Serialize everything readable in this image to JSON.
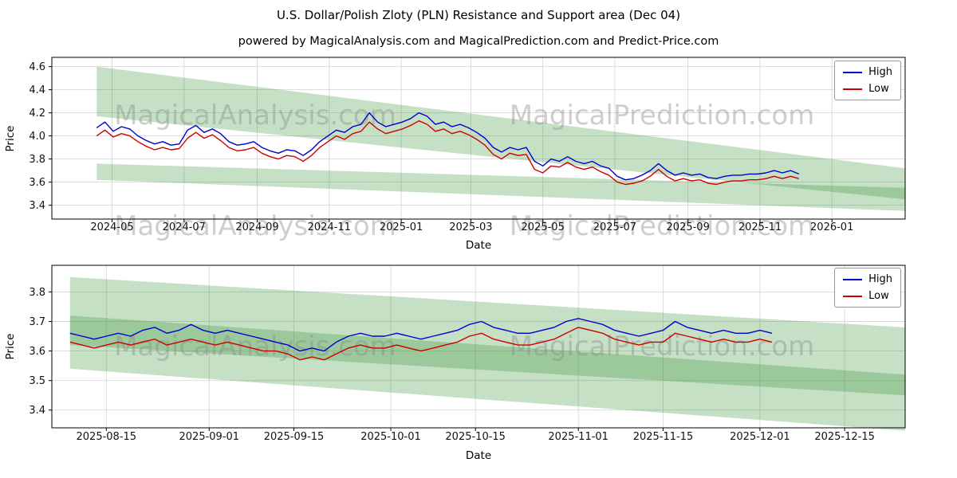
{
  "title": "U.S. Dollar/Polish Zloty (PLN) Resistance and Support area (Dec 04)",
  "subtitle": "powered by MagicalAnalysis.com and MagicalPrediction.com and Predict-Price.com",
  "watermarks": {
    "left": "MagicalAnalysis.com",
    "right": "MagicalPrediction.com"
  },
  "colors": {
    "high": "#0000cc",
    "low": "#cc0000",
    "band": "#2e8b2e",
    "grid": "#d8d8d8"
  },
  "t_unit": "days since 2024-01-01",
  "chart_data": [
    {
      "type": "line",
      "xlabel": "Date",
      "ylabel": "Price",
      "x_domain": [
        70,
        793
      ],
      "ylim": [
        3.28,
        4.68
      ],
      "x_ticks": [
        {
          "t": 121,
          "label": "2024-05"
        },
        {
          "t": 182,
          "label": "2024-07"
        },
        {
          "t": 244,
          "label": "2024-09"
        },
        {
          "t": 305,
          "label": "2024-11"
        },
        {
          "t": 366,
          "label": "2025-01"
        },
        {
          "t": 425,
          "label": "2025-03"
        },
        {
          "t": 486,
          "label": "2025-05"
        },
        {
          "t": 547,
          "label": "2025-07"
        },
        {
          "t": 609,
          "label": "2025-09"
        },
        {
          "t": 670,
          "label": "2025-11"
        },
        {
          "t": 731,
          "label": "2026-01"
        }
      ],
      "y_ticks": [
        {
          "v": 3.4,
          "label": "3.4"
        },
        {
          "v": 3.6,
          "label": "3.6"
        },
        {
          "v": 3.8,
          "label": "3.8"
        },
        {
          "v": 4.0,
          "label": "4.0"
        },
        {
          "v": 4.2,
          "label": "4.2"
        },
        {
          "v": 4.4,
          "label": "4.4"
        },
        {
          "v": 4.6,
          "label": "4.6"
        }
      ],
      "series": [
        {
          "name": "High",
          "color": "#0000cc",
          "t_start": 108,
          "t_step": 7,
          "values": [
            4.07,
            4.12,
            4.04,
            4.08,
            4.06,
            4.0,
            3.96,
            3.93,
            3.95,
            3.92,
            3.93,
            4.05,
            4.09,
            4.03,
            4.06,
            4.02,
            3.95,
            3.92,
            3.93,
            3.95,
            3.9,
            3.87,
            3.85,
            3.88,
            3.87,
            3.83,
            3.88,
            3.95,
            4.0,
            4.05,
            4.03,
            4.08,
            4.1,
            4.2,
            4.12,
            4.08,
            4.1,
            4.12,
            4.15,
            4.2,
            4.17,
            4.1,
            4.12,
            4.08,
            4.1,
            4.07,
            4.03,
            3.98,
            3.9,
            3.86,
            3.9,
            3.88,
            3.9,
            3.78,
            3.74,
            3.8,
            3.78,
            3.82,
            3.78,
            3.76,
            3.78,
            3.74,
            3.72,
            3.65,
            3.62,
            3.63,
            3.66,
            3.7,
            3.76,
            3.7,
            3.66,
            3.68,
            3.66,
            3.67,
            3.64,
            3.63,
            3.65,
            3.66,
            3.66,
            3.67,
            3.67,
            3.68,
            3.7,
            3.68,
            3.7,
            3.67
          ]
        },
        {
          "name": "Low",
          "color": "#cc0000",
          "t_start": 108,
          "t_step": 7,
          "values": [
            4.0,
            4.05,
            3.99,
            4.02,
            4.0,
            3.95,
            3.91,
            3.88,
            3.9,
            3.88,
            3.89,
            3.98,
            4.03,
            3.98,
            4.01,
            3.96,
            3.9,
            3.87,
            3.88,
            3.9,
            3.85,
            3.82,
            3.8,
            3.83,
            3.82,
            3.78,
            3.83,
            3.9,
            3.95,
            4.0,
            3.97,
            4.02,
            4.04,
            4.12,
            4.06,
            4.02,
            4.04,
            4.06,
            4.09,
            4.13,
            4.1,
            4.04,
            4.06,
            4.02,
            4.04,
            4.01,
            3.97,
            3.92,
            3.84,
            3.8,
            3.85,
            3.83,
            3.84,
            3.71,
            3.68,
            3.74,
            3.73,
            3.77,
            3.73,
            3.71,
            3.73,
            3.69,
            3.66,
            3.6,
            3.58,
            3.59,
            3.61,
            3.65,
            3.71,
            3.65,
            3.61,
            3.63,
            3.61,
            3.62,
            3.59,
            3.58,
            3.6,
            3.61,
            3.61,
            3.62,
            3.62,
            3.63,
            3.65,
            3.63,
            3.65,
            3.63
          ]
        }
      ],
      "bands": [
        {
          "name": "resistance-area",
          "t0": 108,
          "t1": 793,
          "top": [
            4.6,
            3.72
          ],
          "bottom": [
            4.17,
            3.45
          ]
        },
        {
          "name": "support-area",
          "t0": 108,
          "t1": 793,
          "top": [
            3.76,
            3.55
          ],
          "bottom": [
            3.62,
            3.35
          ]
        }
      ],
      "legend": {
        "position": "upper right",
        "items": [
          "High",
          "Low"
        ]
      }
    },
    {
      "type": "line",
      "xlabel": "Date",
      "ylabel": "Price",
      "x_domain": [
        583,
        724
      ],
      "ylim": [
        3.34,
        3.89
      ],
      "x_ticks": [
        {
          "t": 592,
          "label": "2025-08-15"
        },
        {
          "t": 609,
          "label": "2025-09-01"
        },
        {
          "t": 623,
          "label": "2025-09-15"
        },
        {
          "t": 639,
          "label": "2025-10-01"
        },
        {
          "t": 653,
          "label": "2025-10-15"
        },
        {
          "t": 670,
          "label": "2025-11-01"
        },
        {
          "t": 684,
          "label": "2025-11-15"
        },
        {
          "t": 700,
          "label": "2025-12-01"
        },
        {
          "t": 714,
          "label": "2025-12-15"
        }
      ],
      "y_ticks": [
        {
          "v": 3.4,
          "label": "3.4"
        },
        {
          "v": 3.5,
          "label": "3.5"
        },
        {
          "v": 3.6,
          "label": "3.6"
        },
        {
          "v": 3.7,
          "label": "3.7"
        },
        {
          "v": 3.8,
          "label": "3.8"
        }
      ],
      "series": [
        {
          "name": "High",
          "color": "#0000cc",
          "t_start": 586,
          "t_step": 2,
          "values": [
            3.66,
            3.65,
            3.64,
            3.65,
            3.66,
            3.65,
            3.67,
            3.68,
            3.66,
            3.67,
            3.69,
            3.67,
            3.66,
            3.67,
            3.66,
            3.65,
            3.64,
            3.63,
            3.62,
            3.6,
            3.61,
            3.6,
            3.63,
            3.65,
            3.66,
            3.65,
            3.65,
            3.66,
            3.65,
            3.64,
            3.65,
            3.66,
            3.67,
            3.69,
            3.7,
            3.68,
            3.67,
            3.66,
            3.66,
            3.67,
            3.68,
            3.7,
            3.71,
            3.7,
            3.69,
            3.67,
            3.66,
            3.65,
            3.66,
            3.67,
            3.7,
            3.68,
            3.67,
            3.66,
            3.67,
            3.66,
            3.66,
            3.67,
            3.66
          ]
        },
        {
          "name": "Low",
          "color": "#cc0000",
          "t_start": 586,
          "t_step": 2,
          "values": [
            3.63,
            3.62,
            3.61,
            3.62,
            3.63,
            3.62,
            3.63,
            3.64,
            3.62,
            3.63,
            3.64,
            3.63,
            3.62,
            3.63,
            3.62,
            3.61,
            3.6,
            3.6,
            3.59,
            3.57,
            3.58,
            3.57,
            3.59,
            3.61,
            3.62,
            3.61,
            3.61,
            3.62,
            3.61,
            3.6,
            3.61,
            3.62,
            3.63,
            3.65,
            3.66,
            3.64,
            3.63,
            3.62,
            3.62,
            3.63,
            3.64,
            3.66,
            3.68,
            3.67,
            3.66,
            3.64,
            3.63,
            3.62,
            3.63,
            3.63,
            3.66,
            3.65,
            3.64,
            3.63,
            3.64,
            3.63,
            3.63,
            3.64,
            3.63
          ]
        }
      ],
      "bands": [
        {
          "name": "resistance-area",
          "t0": 586,
          "t1": 724,
          "top": [
            3.85,
            3.68
          ],
          "bottom": [
            3.62,
            3.45
          ]
        },
        {
          "name": "support-area",
          "t0": 586,
          "t1": 724,
          "top": [
            3.72,
            3.52
          ],
          "bottom": [
            3.54,
            3.33
          ]
        }
      ],
      "legend": {
        "position": "upper right",
        "items": [
          "High",
          "Low"
        ]
      }
    }
  ]
}
